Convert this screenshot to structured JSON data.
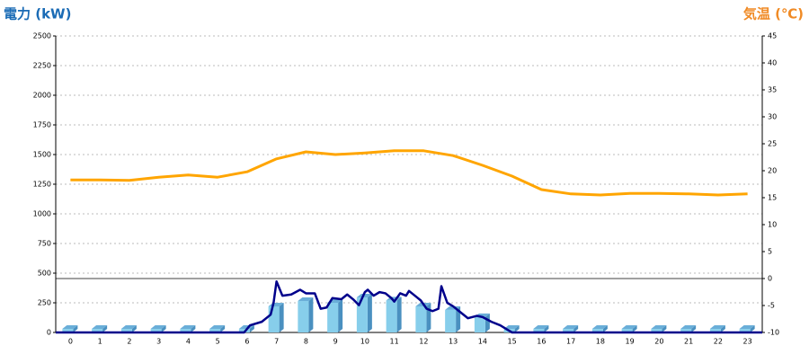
{
  "chart_data": {
    "type": "combo",
    "y_label": "電力 (kW)",
    "y2_label": "気温 (℃)",
    "categories": [
      "0",
      "1",
      "2",
      "3",
      "4",
      "5",
      "6",
      "7",
      "8",
      "9",
      "10",
      "11",
      "12",
      "13",
      "14",
      "15",
      "16",
      "17",
      "18",
      "19",
      "20",
      "21",
      "22",
      "23"
    ],
    "ylim": [
      0,
      2500
    ],
    "yticks": [
      0,
      250,
      500,
      750,
      1000,
      1250,
      1500,
      1750,
      2000,
      2250,
      2500
    ],
    "y2lim": [
      -10,
      45
    ],
    "y2ticks": [
      -10,
      -5,
      0,
      5,
      10,
      15,
      20,
      25,
      30,
      35,
      40,
      45
    ],
    "grid": true,
    "series": [
      {
        "type": "bar",
        "color": "#87ceeb",
        "values": [
          30,
          30,
          30,
          30,
          30,
          30,
          30,
          220,
          265,
          250,
          295,
          270,
          220,
          190,
          130,
          30,
          30,
          30,
          30,
          30,
          30,
          30,
          30,
          30
        ]
      },
      {
        "type": "line",
        "color": "#00008b",
        "x": [
          -0.5,
          5.9,
          6.1,
          6.5,
          6.8,
          6.9,
          7.0,
          7.2,
          7.5,
          7.8,
          8.0,
          8.3,
          8.5,
          8.7,
          8.9,
          9.2,
          9.4,
          9.6,
          9.8,
          10.0,
          10.1,
          10.3,
          10.5,
          10.7,
          10.9,
          11.0,
          11.2,
          11.4,
          11.5,
          11.7,
          11.9,
          12.1,
          12.3,
          12.5,
          12.6,
          12.8,
          13.0,
          13.2,
          13.5,
          13.8,
          14.0,
          14.3,
          14.6,
          14.8,
          15.0,
          23.5
        ],
        "values": [
          0,
          0,
          60,
          90,
          150,
          250,
          430,
          310,
          320,
          360,
          330,
          330,
          200,
          210,
          290,
          280,
          320,
          280,
          230,
          340,
          360,
          310,
          340,
          330,
          290,
          260,
          330,
          310,
          350,
          310,
          270,
          200,
          180,
          200,
          390,
          250,
          220,
          180,
          120,
          140,
          130,
          90,
          60,
          30,
          0,
          0
        ]
      },
      {
        "type": "line",
        "axis": "y2",
        "color": "#ffa500",
        "values": [
          18.3,
          18.3,
          18.2,
          18.8,
          19.2,
          18.8,
          19.8,
          22.2,
          23.5,
          23.0,
          23.3,
          23.7,
          23.7,
          22.8,
          21.0,
          19.0,
          16.5,
          15.7,
          15.5,
          15.8,
          15.8,
          15.7,
          15.5,
          15.7
        ]
      }
    ]
  }
}
